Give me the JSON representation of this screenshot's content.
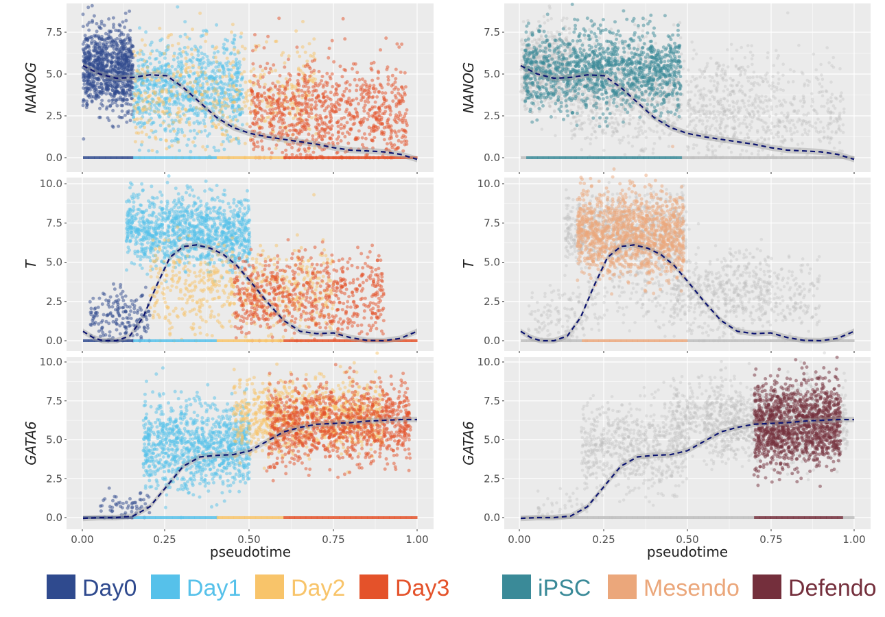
{
  "chart_data": {
    "type": "scatter",
    "xlabel": "pseudotime",
    "x_ticks": [
      "0.00",
      "0.25",
      "0.50",
      "0.75",
      "1.00"
    ],
    "xlim": [
      0,
      1
    ],
    "panels": [
      {
        "gene": "NANOG",
        "ylim": [
          0,
          8.8
        ],
        "y_ticks": [
          {
            "v": 0,
            "label": "0.0"
          },
          {
            "v": 2.5,
            "label": "2.5"
          },
          {
            "v": 5,
            "label": "5.0"
          },
          {
            "v": 7.5,
            "label": "7.5"
          }
        ],
        "trend": [
          [
            0,
            5.5
          ],
          [
            0.05,
            5.0
          ],
          [
            0.1,
            4.75
          ],
          [
            0.15,
            4.8
          ],
          [
            0.2,
            4.95
          ],
          [
            0.25,
            4.9
          ],
          [
            0.3,
            4.2
          ],
          [
            0.35,
            3.3
          ],
          [
            0.4,
            2.4
          ],
          [
            0.45,
            1.8
          ],
          [
            0.5,
            1.45
          ],
          [
            0.55,
            1.25
          ],
          [
            0.6,
            1.1
          ],
          [
            0.65,
            0.95
          ],
          [
            0.7,
            0.8
          ],
          [
            0.75,
            0.6
          ],
          [
            0.8,
            0.45
          ],
          [
            0.85,
            0.4
          ],
          [
            0.9,
            0.35
          ],
          [
            0.95,
            0.2
          ],
          [
            1.0,
            -0.1
          ]
        ]
      },
      {
        "gene": "T",
        "ylim": [
          0,
          10
        ],
        "y_ticks": [
          {
            "v": 0,
            "label": "0.0"
          },
          {
            "v": 2.5,
            "label": "2.5"
          },
          {
            "v": 5,
            "label": "5.0"
          },
          {
            "v": 7.5,
            "label": "7.5"
          },
          {
            "v": 10,
            "label": "10.0"
          }
        ],
        "trend": [
          [
            0,
            0.6
          ],
          [
            0.03,
            0.2
          ],
          [
            0.06,
            0.0
          ],
          [
            0.1,
            0.0
          ],
          [
            0.14,
            0.3
          ],
          [
            0.18,
            1.5
          ],
          [
            0.22,
            3.5
          ],
          [
            0.26,
            5.3
          ],
          [
            0.3,
            6.0
          ],
          [
            0.34,
            6.1
          ],
          [
            0.38,
            5.9
          ],
          [
            0.42,
            5.5
          ],
          [
            0.46,
            4.8
          ],
          [
            0.5,
            3.8
          ],
          [
            0.55,
            2.5
          ],
          [
            0.6,
            1.3
          ],
          [
            0.65,
            0.6
          ],
          [
            0.7,
            0.45
          ],
          [
            0.75,
            0.5
          ],
          [
            0.8,
            0.2
          ],
          [
            0.85,
            0.02
          ],
          [
            0.9,
            0.0
          ],
          [
            0.95,
            0.15
          ],
          [
            1.0,
            0.6
          ]
        ]
      },
      {
        "gene": "GATA6",
        "ylim": [
          0,
          10
        ],
        "y_ticks": [
          {
            "v": 0,
            "label": "0.0"
          },
          {
            "v": 2.5,
            "label": "2.5"
          },
          {
            "v": 5,
            "label": "5.0"
          },
          {
            "v": 7.5,
            "label": "7.5"
          },
          {
            "v": 10,
            "label": "10.0"
          }
        ],
        "trend": [
          [
            0,
            -0.05
          ],
          [
            0.05,
            0.0
          ],
          [
            0.1,
            0.0
          ],
          [
            0.15,
            0.1
          ],
          [
            0.2,
            0.7
          ],
          [
            0.25,
            2.0
          ],
          [
            0.3,
            3.3
          ],
          [
            0.35,
            3.9
          ],
          [
            0.4,
            4.0
          ],
          [
            0.45,
            4.05
          ],
          [
            0.5,
            4.3
          ],
          [
            0.55,
            4.9
          ],
          [
            0.6,
            5.5
          ],
          [
            0.65,
            5.8
          ],
          [
            0.7,
            6.0
          ],
          [
            0.75,
            6.05
          ],
          [
            0.8,
            6.1
          ],
          [
            0.85,
            6.2
          ],
          [
            0.9,
            6.25
          ],
          [
            0.95,
            6.3
          ],
          [
            1.0,
            6.3
          ]
        ]
      }
    ],
    "left_legend": [
      {
        "label": "Day0",
        "color": "#2f4a8e"
      },
      {
        "label": "Day1",
        "color": "#56c1ea"
      },
      {
        "label": "Day2",
        "color": "#f8c46a"
      },
      {
        "label": "Day3",
        "color": "#e4522a"
      }
    ],
    "right_legend": [
      {
        "label": "iPSC",
        "color": "#3a8a98"
      },
      {
        "label": "Mesendo",
        "color": "#eba77b"
      },
      {
        "label": "Defendo",
        "color": "#742f3c"
      }
    ],
    "clusters_left": [
      [
        {
          "c": "#2f4a8e",
          "n": 900,
          "x": [
            0.0,
            0.15
          ],
          "m": 5.3,
          "s": 1.2
        },
        {
          "c": "#56c1ea",
          "n": 800,
          "x": [
            0.15,
            0.48
          ],
          "m": 4.0,
          "s": 1.5
        },
        {
          "c": "#f8c46a",
          "n": 450,
          "x": [
            0.15,
            0.7
          ],
          "m": 3.6,
          "s": 1.8
        },
        {
          "c": "#e4522a",
          "n": 900,
          "x": [
            0.5,
            0.97
          ],
          "m": 2.6,
          "s": 1.6
        }
      ],
      [
        {
          "c": "#2f4a8e",
          "n": 180,
          "x": [
            0.02,
            0.2
          ],
          "m": 1.5,
          "s": 0.9
        },
        {
          "c": "#56c1ea",
          "n": 1100,
          "x": [
            0.13,
            0.5
          ],
          "m": 7.0,
          "s": 1.1
        },
        {
          "c": "#f8c46a",
          "n": 550,
          "x": [
            0.2,
            0.75
          ],
          "m": 3.3,
          "s": 1.4
        },
        {
          "c": "#e4522a",
          "n": 650,
          "x": [
            0.45,
            0.9
          ],
          "m": 2.8,
          "s": 1.3
        }
      ],
      [
        {
          "c": "#2f4a8e",
          "n": 60,
          "x": [
            0.05,
            0.2
          ],
          "m": 0.7,
          "s": 0.6
        },
        {
          "c": "#56c1ea",
          "n": 1000,
          "x": [
            0.18,
            0.5
          ],
          "m": 4.6,
          "s": 1.4
        },
        {
          "c": "#f8c46a",
          "n": 800,
          "x": [
            0.45,
            0.9
          ],
          "m": 6.6,
          "s": 1.2
        },
        {
          "c": "#e4522a",
          "n": 1100,
          "x": [
            0.55,
            0.98
          ],
          "m": 6.0,
          "s": 1.2
        }
      ]
    ],
    "clusters_right": [
      [
        {
          "c": "#3a8a98",
          "n": 1300,
          "x": [
            0.01,
            0.48
          ],
          "m": 5.2,
          "s": 1.2
        }
      ],
      [
        {
          "c": "#eba77b",
          "n": 1300,
          "x": [
            0.17,
            0.49
          ],
          "m": 6.8,
          "s": 1.3
        }
      ],
      [
        {
          "c": "#742f3c",
          "n": 1300,
          "x": [
            0.7,
            0.96
          ],
          "m": 6.0,
          "s": 1.3
        }
      ]
    ],
    "grey_right": "#bdbdbd",
    "trend_color": "#0b1370",
    "panel_background": "#ebebeb",
    "grid_color": "#ffffff"
  }
}
